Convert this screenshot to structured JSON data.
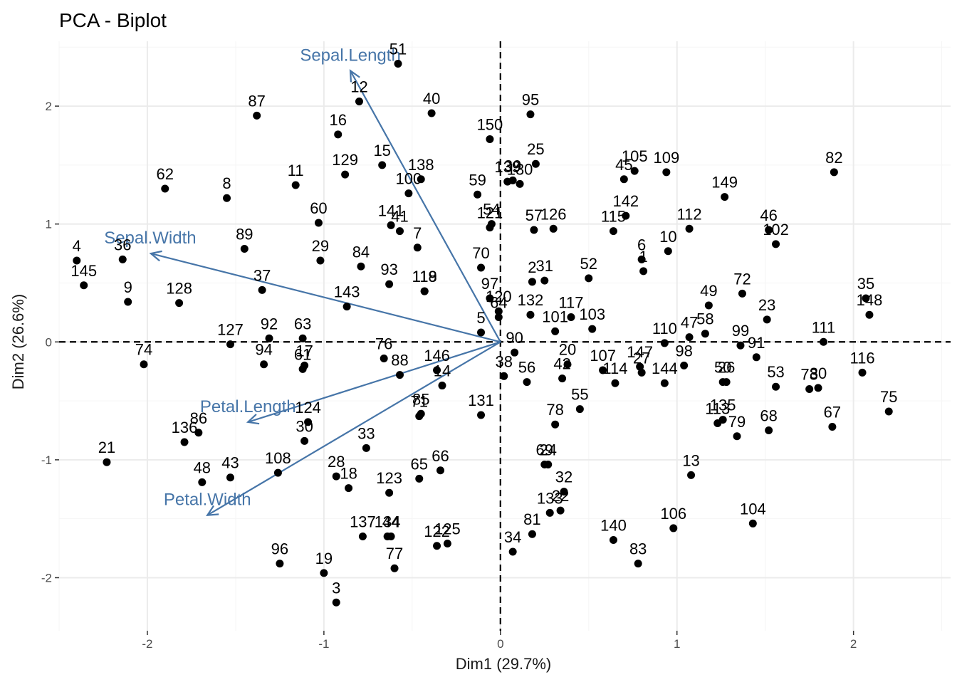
{
  "chart_data": {
    "type": "scatter",
    "title": "PCA - Biplot",
    "xlabel": "Dim1 (29.7%)",
    "ylabel": "Dim2 (26.6%)",
    "xlim": [
      -2.5,
      2.55
    ],
    "ylim": [
      -2.45,
      2.55
    ],
    "x_ticks": [
      -2,
      -1,
      0,
      1,
      2
    ],
    "y_ticks": [
      -2,
      -1,
      0,
      1,
      2
    ],
    "grid": true,
    "reference_lines": {
      "x": 0,
      "y": 0,
      "style": "dashed"
    },
    "colors": {
      "points": "#000000",
      "arrows": "#4675a8",
      "grid_major": "#ebebeb",
      "grid_minor": "#f5f5f5",
      "reference": "#000000"
    },
    "variables": [
      {
        "name": "Sepal.Length",
        "x": -0.85,
        "y": 2.3
      },
      {
        "name": "Sepal.Width",
        "x": -1.98,
        "y": 0.75
      },
      {
        "name": "Petal.Length",
        "x": -1.43,
        "y": -0.68
      },
      {
        "name": "Petal.Width",
        "x": -1.66,
        "y": -1.47
      }
    ],
    "points": [
      {
        "label": "1",
        "x": 0.81,
        "y": 0.6
      },
      {
        "label": "2",
        "x": 0.18,
        "y": 0.51
      },
      {
        "label": "3",
        "x": -0.93,
        "y": -2.21
      },
      {
        "label": "4",
        "x": -2.4,
        "y": 0.69
      },
      {
        "label": "5",
        "x": -0.11,
        "y": 0.08
      },
      {
        "label": "6",
        "x": 0.8,
        "y": 0.7
      },
      {
        "label": "7",
        "x": -0.47,
        "y": 0.8
      },
      {
        "label": "8",
        "x": -1.55,
        "y": 1.22
      },
      {
        "label": "9",
        "x": -2.11,
        "y": 0.34
      },
      {
        "label": "10",
        "x": 0.95,
        "y": 0.77
      },
      {
        "label": "11",
        "x": -1.16,
        "y": 1.33
      },
      {
        "label": "12",
        "x": -0.8,
        "y": 2.04
      },
      {
        "label": "13",
        "x": 1.08,
        "y": -1.13
      },
      {
        "label": "14",
        "x": -0.33,
        "y": -0.37
      },
      {
        "label": "15",
        "x": -0.67,
        "y": 1.5
      },
      {
        "label": "16",
        "x": -0.92,
        "y": 1.76
      },
      {
        "label": "17",
        "x": -1.11,
        "y": -0.2
      },
      {
        "label": "18",
        "x": -0.86,
        "y": -1.24
      },
      {
        "label": "19",
        "x": -1.0,
        "y": -1.96
      },
      {
        "label": "20",
        "x": 0.38,
        "y": -0.19
      },
      {
        "label": "21",
        "x": -2.23,
        "y": -1.02
      },
      {
        "label": "22",
        "x": 0.34,
        "y": -1.43
      },
      {
        "label": "23",
        "x": 1.51,
        "y": 0.19
      },
      {
        "label": "24",
        "x": 0.27,
        "y": -1.04
      },
      {
        "label": "25",
        "x": 0.2,
        "y": 1.51
      },
      {
        "label": "26",
        "x": 1.28,
        "y": -0.34
      },
      {
        "label": "27",
        "x": 0.8,
        "y": -0.26
      },
      {
        "label": "28",
        "x": -0.93,
        "y": -1.14
      },
      {
        "label": "29",
        "x": -1.02,
        "y": 0.69
      },
      {
        "label": "30",
        "x": -1.11,
        "y": -0.84
      },
      {
        "label": "31",
        "x": 0.25,
        "y": 0.52
      },
      {
        "label": "32",
        "x": 0.36,
        "y": -1.27
      },
      {
        "label": "33",
        "x": -0.76,
        "y": -0.9
      },
      {
        "label": "34",
        "x": 0.07,
        "y": -1.78
      },
      {
        "label": "35",
        "x": 2.07,
        "y": 0.37
      },
      {
        "label": "36",
        "x": -2.14,
        "y": 0.7
      },
      {
        "label": "37",
        "x": -1.35,
        "y": 0.44
      },
      {
        "label": "38",
        "x": 0.02,
        "y": -0.29
      },
      {
        "label": "39",
        "x": 0.07,
        "y": 1.37
      },
      {
        "label": "40",
        "x": -0.39,
        "y": 1.94
      },
      {
        "label": "41",
        "x": -0.57,
        "y": 0.94
      },
      {
        "label": "42",
        "x": 0.35,
        "y": -0.31
      },
      {
        "label": "43",
        "x": -1.53,
        "y": -1.15
      },
      {
        "label": "44",
        "x": -0.62,
        "y": -1.65
      },
      {
        "label": "45",
        "x": 0.7,
        "y": 1.38
      },
      {
        "label": "46",
        "x": 1.52,
        "y": 0.95
      },
      {
        "label": "47",
        "x": 1.07,
        "y": 0.04
      },
      {
        "label": "48",
        "x": -1.69,
        "y": -1.19
      },
      {
        "label": "49",
        "x": 1.18,
        "y": 0.31
      },
      {
        "label": "50",
        "x": 1.26,
        "y": -0.34
      },
      {
        "label": "51",
        "x": -0.58,
        "y": 2.36
      },
      {
        "label": "52",
        "x": 0.5,
        "y": 0.54
      },
      {
        "label": "53",
        "x": 1.56,
        "y": -0.38
      },
      {
        "label": "54",
        "x": -0.05,
        "y": 1.0
      },
      {
        "label": "55",
        "x": 0.45,
        "y": -0.57
      },
      {
        "label": "56",
        "x": 0.15,
        "y": -0.34
      },
      {
        "label": "57",
        "x": 0.19,
        "y": 0.95
      },
      {
        "label": "58",
        "x": 1.16,
        "y": 0.07
      },
      {
        "label": "59",
        "x": -0.13,
        "y": 1.25
      },
      {
        "label": "60",
        "x": -1.03,
        "y": 1.01
      },
      {
        "label": "61",
        "x": -1.12,
        "y": -0.23
      },
      {
        "label": "62",
        "x": -1.9,
        "y": 1.3
      },
      {
        "label": "63",
        "x": -1.12,
        "y": 0.03
      },
      {
        "label": "64",
        "x": -0.01,
        "y": 0.21
      },
      {
        "label": "65",
        "x": -0.46,
        "y": -1.16
      },
      {
        "label": "66",
        "x": -0.34,
        "y": -1.09
      },
      {
        "label": "67",
        "x": 1.88,
        "y": -0.72
      },
      {
        "label": "68",
        "x": 1.52,
        "y": -0.75
      },
      {
        "label": "69",
        "x": 0.25,
        "y": -1.04
      },
      {
        "label": "70",
        "x": -0.11,
        "y": 0.63
      },
      {
        "label": "71",
        "x": -0.46,
        "y": -0.63
      },
      {
        "label": "72",
        "x": 1.37,
        "y": 0.41
      },
      {
        "label": "73",
        "x": 1.75,
        "y": -0.4
      },
      {
        "label": "74",
        "x": -2.02,
        "y": -0.19
      },
      {
        "label": "75",
        "x": 2.2,
        "y": -0.59
      },
      {
        "label": "76",
        "x": -0.66,
        "y": -0.14
      },
      {
        "label": "77",
        "x": -0.6,
        "y": -1.92
      },
      {
        "label": "78",
        "x": 0.31,
        "y": -0.7
      },
      {
        "label": "79",
        "x": 1.34,
        "y": -0.8
      },
      {
        "label": "80",
        "x": 1.8,
        "y": -0.39
      },
      {
        "label": "81",
        "x": 0.18,
        "y": -1.63
      },
      {
        "label": "82",
        "x": 1.89,
        "y": 1.44
      },
      {
        "label": "83",
        "x": 0.78,
        "y": -1.88
      },
      {
        "label": "84",
        "x": -0.79,
        "y": 0.64
      },
      {
        "label": "85",
        "x": -0.45,
        "y": -0.61
      },
      {
        "label": "86",
        "x": -1.71,
        "y": -0.77
      },
      {
        "label": "87",
        "x": -1.38,
        "y": 1.92
      },
      {
        "label": "88",
        "x": -0.57,
        "y": -0.28
      },
      {
        "label": "89",
        "x": -1.45,
        "y": 0.79
      },
      {
        "label": "90",
        "x": 0.08,
        "y": -0.09
      },
      {
        "label": "91",
        "x": 1.45,
        "y": -0.13
      },
      {
        "label": "92",
        "x": -1.31,
        "y": 0.03
      },
      {
        "label": "93",
        "x": -0.63,
        "y": 0.49
      },
      {
        "label": "94",
        "x": -1.34,
        "y": -0.19
      },
      {
        "label": "95",
        "x": 0.17,
        "y": 1.93
      },
      {
        "label": "96",
        "x": -1.25,
        "y": -1.88
      },
      {
        "label": "97",
        "x": -0.06,
        "y": 0.37
      },
      {
        "label": "98",
        "x": 1.04,
        "y": -0.2
      },
      {
        "label": "99",
        "x": 1.36,
        "y": -0.03
      },
      {
        "label": "100",
        "x": -0.52,
        "y": 1.26
      },
      {
        "label": "101",
        "x": 0.31,
        "y": 0.09
      },
      {
        "label": "102",
        "x": 1.56,
        "y": 0.83
      },
      {
        "label": "103",
        "x": 0.52,
        "y": 0.11
      },
      {
        "label": "104",
        "x": 1.43,
        "y": -1.54
      },
      {
        "label": "105",
        "x": 0.76,
        "y": 1.45
      },
      {
        "label": "106",
        "x": 0.98,
        "y": -1.58
      },
      {
        "label": "107",
        "x": 0.58,
        "y": -0.24
      },
      {
        "label": "108",
        "x": -1.26,
        "y": -1.11
      },
      {
        "label": "109",
        "x": 0.94,
        "y": 1.44
      },
      {
        "label": "110",
        "x": 0.93,
        "y": -0.01
      },
      {
        "label": "111",
        "x": 1.83,
        "y": 0.0
      },
      {
        "label": "112",
        "x": 1.07,
        "y": 0.96
      },
      {
        "label": "113",
        "x": 1.23,
        "y": -0.69
      },
      {
        "label": "114",
        "x": 0.65,
        "y": -0.35
      },
      {
        "label": "115",
        "x": 0.64,
        "y": 0.94
      },
      {
        "label": "116",
        "x": 2.05,
        "y": -0.26
      },
      {
        "label": "117",
        "x": 0.4,
        "y": 0.21
      },
      {
        "label": "118",
        "x": -0.43,
        "y": 0.43
      },
      {
        "label": "119",
        "x": -0.43,
        "y": 0.43
      },
      {
        "label": "120",
        "x": -0.01,
        "y": 0.26
      },
      {
        "label": "121",
        "x": -0.06,
        "y": 0.97
      },
      {
        "label": "122",
        "x": -0.36,
        "y": -1.73
      },
      {
        "label": "123",
        "x": -0.63,
        "y": -1.28
      },
      {
        "label": "124",
        "x": -1.09,
        "y": -0.68
      },
      {
        "label": "125",
        "x": -0.3,
        "y": -1.71
      },
      {
        "label": "126",
        "x": 0.3,
        "y": 0.96
      },
      {
        "label": "127",
        "x": -1.53,
        "y": -0.02
      },
      {
        "label": "128",
        "x": -1.82,
        "y": 0.33
      },
      {
        "label": "129",
        "x": -0.88,
        "y": 1.42
      },
      {
        "label": "130",
        "x": 0.11,
        "y": 1.34
      },
      {
        "label": "131",
        "x": -0.11,
        "y": -0.62
      },
      {
        "label": "132",
        "x": 0.17,
        "y": 0.23
      },
      {
        "label": "133",
        "x": 0.28,
        "y": -1.45
      },
      {
        "label": "134",
        "x": -0.64,
        "y": -1.65
      },
      {
        "label": "135",
        "x": 1.26,
        "y": -0.66
      },
      {
        "label": "136",
        "x": -1.79,
        "y": -0.85
      },
      {
        "label": "137",
        "x": -0.78,
        "y": -1.65
      },
      {
        "label": "138",
        "x": -0.45,
        "y": 1.38
      },
      {
        "label": "139",
        "x": 0.04,
        "y": 1.36
      },
      {
        "label": "140",
        "x": 0.64,
        "y": -1.68
      },
      {
        "label": "141",
        "x": -0.62,
        "y": 0.99
      },
      {
        "label": "142",
        "x": 0.71,
        "y": 1.07
      },
      {
        "label": "143",
        "x": -0.87,
        "y": 0.3
      },
      {
        "label": "144",
        "x": 0.93,
        "y": -0.35
      },
      {
        "label": "145",
        "x": -2.36,
        "y": 0.48
      },
      {
        "label": "146",
        "x": -0.36,
        "y": -0.24
      },
      {
        "label": "147",
        "x": 0.79,
        "y": -0.21
      },
      {
        "label": "148",
        "x": 2.09,
        "y": 0.23
      },
      {
        "label": "149",
        "x": 1.27,
        "y": 1.23
      },
      {
        "label": "150",
        "x": -0.06,
        "y": 1.72
      }
    ]
  }
}
